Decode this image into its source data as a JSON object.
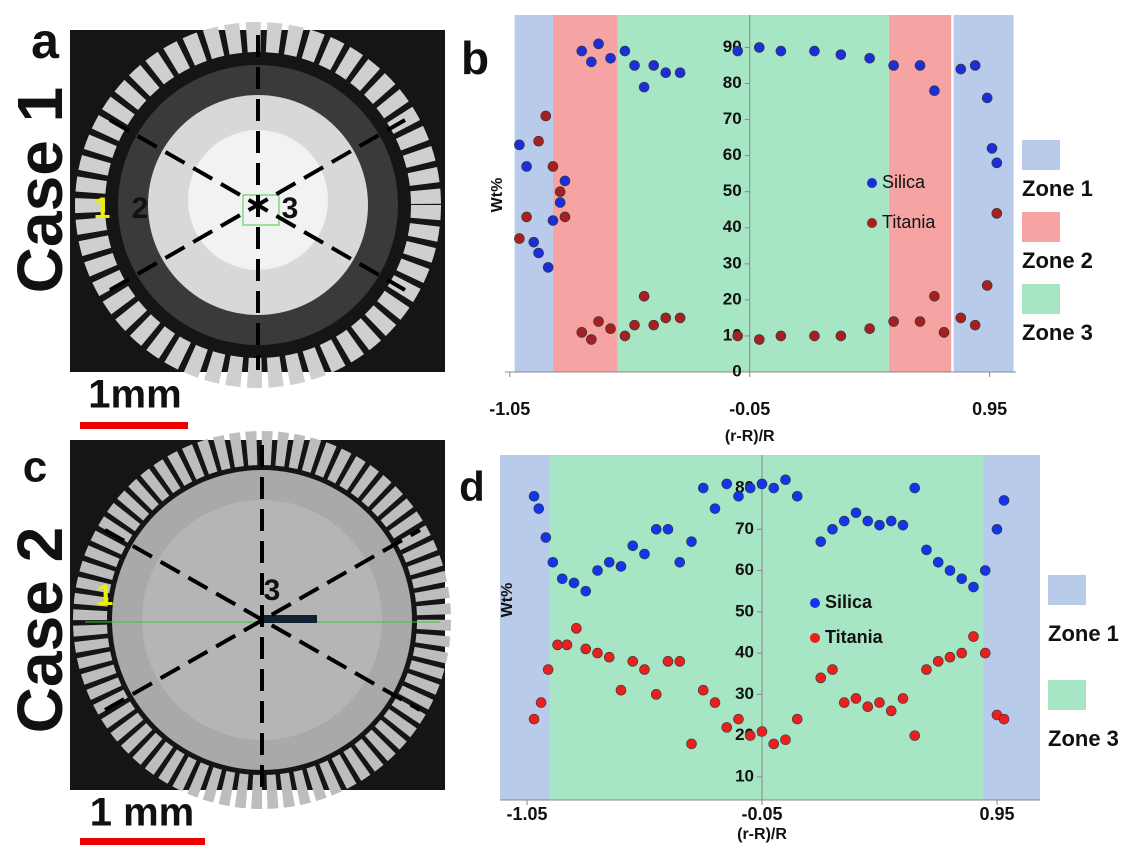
{
  "panels": [
    {
      "letter": "a",
      "case_label": "Case 1",
      "scale_bar": "1mm",
      "markers": [
        "1",
        "2",
        "3"
      ]
    },
    {
      "letter": "c",
      "case_label": "Case 2",
      "scale_bar": "1 mm",
      "markers": [
        "1",
        "3"
      ]
    }
  ],
  "chart_data": [
    {
      "type": "scatter",
      "panel_label": "b",
      "x_label": "(r-R)/R",
      "y_label": "Wt%",
      "xlim": [
        -1.07,
        1.06
      ],
      "ylim": [
        0,
        99
      ],
      "xticks": [
        -1.05,
        -0.05,
        0.95
      ],
      "yticks": [
        0,
        10,
        20,
        30,
        40,
        50,
        60,
        70,
        80,
        90
      ],
      "legend": "right",
      "zones": [
        {
          "name": "Zone 1",
          "color": "#b9cbea",
          "ranges": [
            [
              -1.03,
              -0.87
            ],
            [
              0.8,
              1.05
            ]
          ]
        },
        {
          "name": "Zone 2",
          "color": "#f5a3a3",
          "ranges": [
            [
              -0.87,
              -0.6
            ],
            [
              0.53,
              0.79
            ]
          ]
        },
        {
          "name": "Zone 3",
          "color": "#a6e6c4",
          "ranges": [
            [
              -0.6,
              0.53
            ]
          ]
        }
      ],
      "series": [
        {
          "name": "Silica",
          "color": "#1c2fd6",
          "x": [
            -1.01,
            -0.98,
            -0.95,
            -0.93,
            -0.89,
            -0.87,
            -0.84,
            -0.82,
            -0.75,
            -0.71,
            -0.68,
            -0.63,
            -0.57,
            -0.53,
            -0.49,
            -0.45,
            -0.4,
            -0.34,
            -0.1,
            -0.01,
            0.08,
            0.22,
            0.33,
            0.45,
            0.55,
            0.66,
            0.72,
            0.83,
            0.89,
            0.94,
            0.96,
            0.98
          ],
          "values": [
            63,
            57,
            36,
            33,
            29,
            42,
            47,
            53,
            89,
            86,
            91,
            87,
            89,
            85,
            79,
            85,
            83,
            83,
            89,
            90,
            89,
            89,
            88,
            87,
            85,
            85,
            78,
            84,
            85,
            76,
            62,
            58
          ]
        },
        {
          "name": "Titania",
          "color": "#a52020",
          "x": [
            -1.01,
            -0.98,
            -0.93,
            -0.9,
            -0.87,
            -0.84,
            -0.82,
            -0.75,
            -0.71,
            -0.68,
            -0.63,
            -0.57,
            -0.53,
            -0.49,
            -0.45,
            -0.4,
            -0.34,
            -0.1,
            -0.01,
            0.08,
            0.22,
            0.33,
            0.45,
            0.55,
            0.66,
            0.72,
            0.76,
            0.83,
            0.89,
            0.94,
            0.98
          ],
          "values": [
            37,
            43,
            64,
            71,
            57,
            50,
            43,
            11,
            9,
            14,
            12,
            10,
            13,
            21,
            13,
            15,
            15,
            10,
            9,
            10,
            10,
            10,
            12,
            14,
            14,
            21,
            11,
            15,
            13,
            24,
            44
          ]
        }
      ]
    },
    {
      "type": "scatter",
      "panel_label": "d",
      "x_label": "(r-R)/R",
      "y_label": "Wt%",
      "xlim": [
        -1.165,
        1.133
      ],
      "ylim": [
        4.4,
        88
      ],
      "xticks": [
        -1.05,
        -0.05,
        0.95
      ],
      "yticks": [
        10,
        20,
        30,
        40,
        50,
        60,
        70,
        80
      ],
      "legend": "right",
      "zones": [
        {
          "name": "Zone 1",
          "color": "#b9cbea",
          "ranges": [
            [
              -1.165,
              -0.952
            ],
            [
              0.89,
              1.133
            ]
          ]
        },
        {
          "name": "Zone 3",
          "color": "#a6e6c4",
          "ranges": [
            [
              -0.952,
              0.89
            ]
          ]
        }
      ],
      "series": [
        {
          "name": "Silica",
          "color": "#1236e8",
          "x": [
            -1.02,
            -1.0,
            -0.97,
            -0.94,
            -0.9,
            -0.85,
            -0.8,
            -0.75,
            -0.7,
            -0.65,
            -0.6,
            -0.55,
            -0.5,
            -0.45,
            -0.4,
            -0.35,
            -0.3,
            -0.25,
            -0.2,
            -0.15,
            -0.1,
            -0.05,
            0.0,
            0.05,
            0.1,
            0.2,
            0.25,
            0.3,
            0.35,
            0.4,
            0.45,
            0.5,
            0.55,
            0.6,
            0.65,
            0.7,
            0.75,
            0.8,
            0.85,
            0.9,
            0.95,
            0.98
          ],
          "values": [
            78,
            75,
            68,
            62,
            58,
            57,
            55,
            60,
            62,
            61,
            66,
            64,
            70,
            70,
            62,
            67,
            80,
            75,
            81,
            78,
            80,
            81,
            80,
            82,
            78,
            67,
            70,
            72,
            74,
            72,
            71,
            72,
            71,
            80,
            65,
            62,
            60,
            58,
            56,
            60,
            70,
            77
          ]
        },
        {
          "name": "Titania",
          "color": "#e82020",
          "x": [
            -1.02,
            -0.99,
            -0.96,
            -0.92,
            -0.88,
            -0.84,
            -0.8,
            -0.75,
            -0.7,
            -0.65,
            -0.6,
            -0.55,
            -0.5,
            -0.45,
            -0.4,
            -0.35,
            -0.3,
            -0.25,
            -0.2,
            -0.15,
            -0.1,
            -0.05,
            0.0,
            0.05,
            0.1,
            0.2,
            0.25,
            0.3,
            0.35,
            0.4,
            0.45,
            0.5,
            0.55,
            0.6,
            0.65,
            0.7,
            0.75,
            0.8,
            0.85,
            0.9,
            0.95,
            0.98
          ],
          "values": [
            24,
            28,
            36,
            42,
            42,
            46,
            41,
            40,
            39,
            31,
            38,
            36,
            30,
            38,
            38,
            18,
            31,
            28,
            22,
            24,
            20,
            21,
            18,
            19,
            24,
            34,
            36,
            28,
            29,
            27,
            28,
            26,
            29,
            20,
            36,
            38,
            39,
            40,
            44,
            40,
            25,
            24
          ]
        }
      ]
    }
  ]
}
